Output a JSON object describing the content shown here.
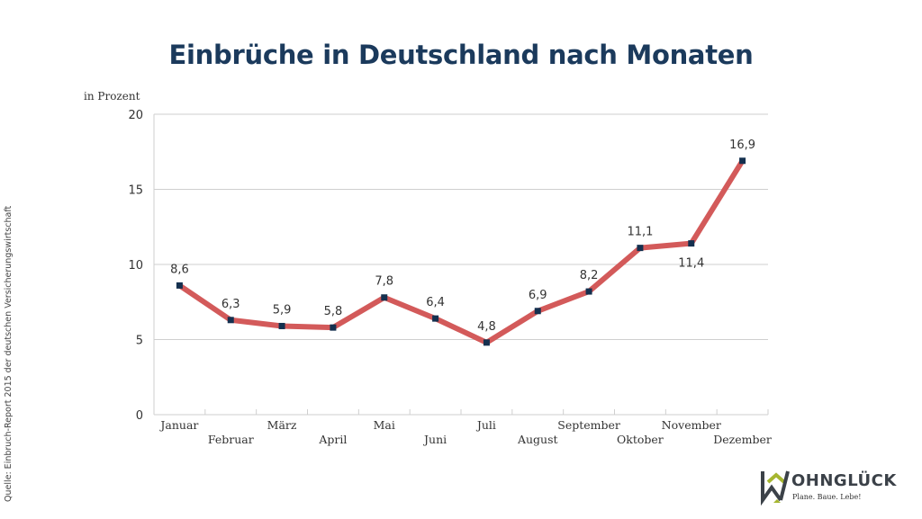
{
  "chart_data": {
    "type": "line",
    "title": "Einbrüche in Deutschland nach Monaten",
    "ylabel": "in Prozent",
    "xlabel": "",
    "categories": [
      "Januar",
      "Februar",
      "März",
      "April",
      "Mai",
      "Juni",
      "Juli",
      "August",
      "September",
      "Oktober",
      "November",
      "Dezember"
    ],
    "values": [
      8.6,
      6.3,
      5.9,
      5.8,
      7.8,
      6.4,
      4.8,
      6.9,
      8.2,
      11.1,
      11.4,
      16.9
    ],
    "data_labels": [
      "8,6",
      "6,3",
      "5,9",
      "5,8",
      "7,8",
      "6,4",
      "4,8",
      "6,9",
      "8,2",
      "11,1",
      "11,4",
      "16,9"
    ],
    "yticks": [
      0,
      5,
      10,
      15,
      20
    ],
    "ylim": [
      0,
      20
    ],
    "grid": true,
    "line_color": "#d35a5a",
    "marker_color": "#14304f",
    "legend": "none"
  },
  "source": "Quelle: Einbruch-Report 2015 der deutschen Versicherungswirtschaft",
  "logo": {
    "name": "WOHNGLÜCK",
    "name_rest": "OHNGLÜCK",
    "tagline": "Plane. Baue. Lebe!",
    "colors": {
      "dark": "#3b4148",
      "green": "#a6b630"
    }
  }
}
